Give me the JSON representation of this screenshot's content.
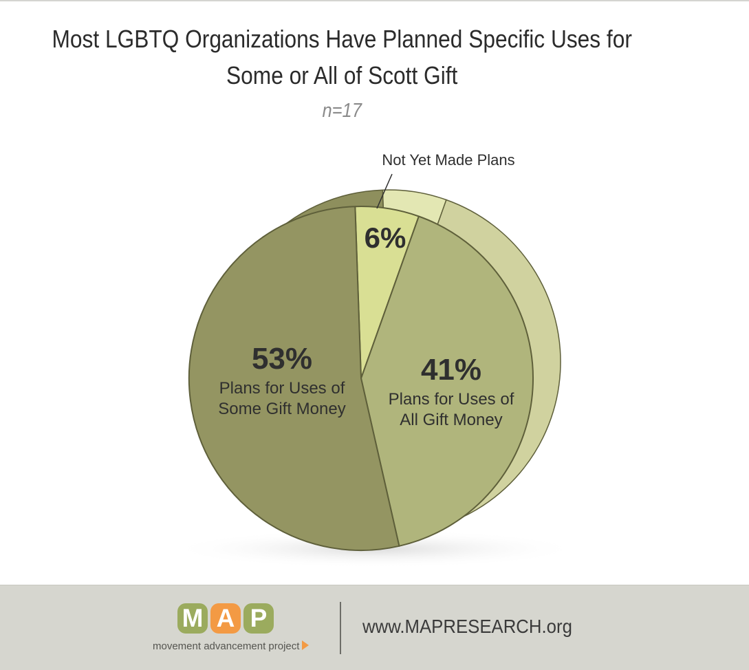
{
  "title_line1": "Most LGBTQ Organizations Have Planned Specific Uses for",
  "title_line2": "Some or All of Scott Gift",
  "subtitle": "n=17",
  "chart_data": {
    "type": "pie",
    "title": "Most LGBTQ Organizations Have Planned Specific Uses for Some or All of Scott Gift",
    "subtitle": "n=17",
    "slices": [
      {
        "label_lines": [
          "Not Yet Made Plans"
        ],
        "value": 6,
        "display": "6%",
        "color": "#d9df94",
        "side_color": "#e3e7b3"
      },
      {
        "label_lines": [
          "Plans for Uses of",
          "All Gift Money"
        ],
        "value": 41,
        "display": "41%",
        "color": "#b0b57c",
        "side_color": "#d0d29f"
      },
      {
        "label_lines": [
          "Plans for Uses of",
          "Some Gift Money"
        ],
        "value": 53,
        "display": "53%",
        "color": "#949562",
        "side_color": "#8e8f5d"
      }
    ],
    "legend": "none"
  },
  "footer": {
    "logo_letters": [
      "M",
      "A",
      "P"
    ],
    "logo_tagline": "movement advancement project",
    "url": "www.MAPRESEARCH.org",
    "colors": {
      "logo_green": "#9bab5e",
      "logo_orange": "#f39a44",
      "footer_bg": "#d6d6cf"
    }
  }
}
